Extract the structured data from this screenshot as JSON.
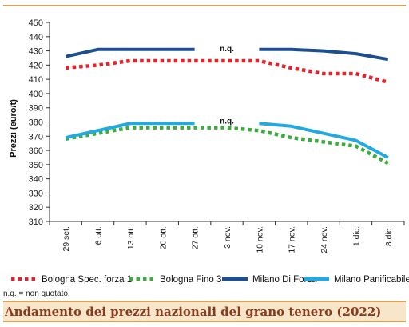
{
  "chart_data": {
    "type": "line",
    "ylabel": "Prezzi (euro/t)",
    "ylim": [
      310,
      450
    ],
    "ytick_step": 10,
    "categories": [
      "29 set.",
      "6 ott.",
      "13 ott.",
      "20 ott.",
      "27 ott.",
      "3 nov.",
      "10 nov.",
      "17 nov.",
      "24 nov.",
      "1 dic.",
      "8 dic."
    ],
    "grid": false,
    "legend_position": "bottom",
    "series": [
      {
        "name": "Bologna Spec. forza 1",
        "color": "#e2232b",
        "style": "dotted",
        "values": [
          418,
          420,
          423,
          423,
          423,
          423,
          423,
          418,
          414,
          414,
          408
        ]
      },
      {
        "name": "Bologna Fino 3",
        "color": "#3bab3b",
        "style": "dotted",
        "values": [
          368,
          372,
          376,
          376,
          376,
          376,
          374,
          369,
          366,
          363,
          351
        ]
      },
      {
        "name": "Milano Di Forza",
        "color": "#1d4e8f",
        "style": "solid",
        "values": [
          426,
          431,
          431,
          431,
          431,
          null,
          431,
          431,
          430,
          428,
          424
        ]
      },
      {
        "name": "Milano Panificabile",
        "color": "#22a9e0",
        "style": "solid",
        "values": [
          369,
          374,
          379,
          379,
          379,
          null,
          379,
          377,
          372,
          367,
          355
        ]
      }
    ],
    "annotations": [
      {
        "text": "n.q.",
        "x": "3 nov.",
        "y": 431
      },
      {
        "text": "n.q.",
        "x": "3 nov.",
        "y": 380
      }
    ]
  },
  "note": "n.q. = non quotato.",
  "caption": "Andamento dei prezzi nazionali del grano tenero (2022)"
}
